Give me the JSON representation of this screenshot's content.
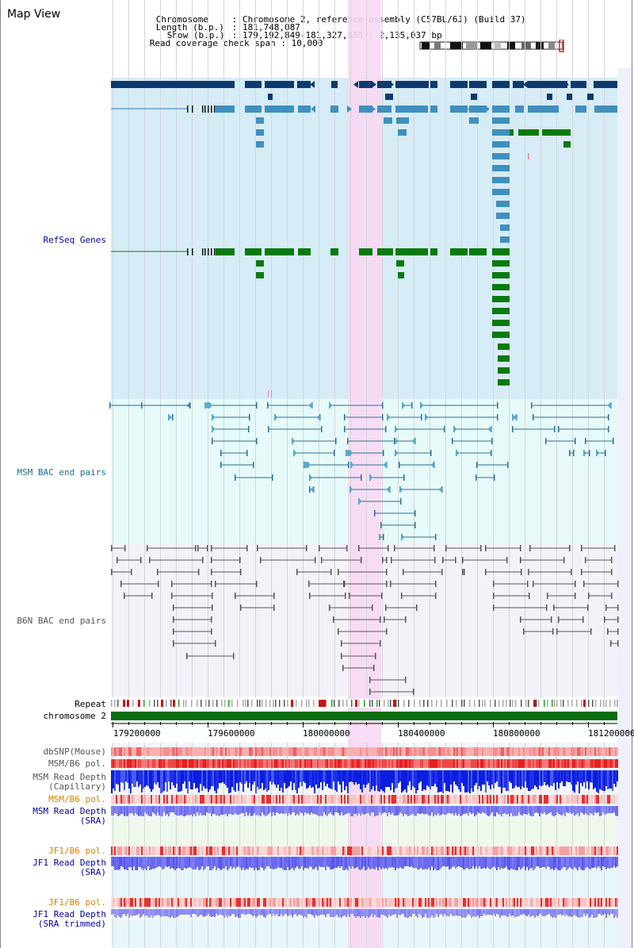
{
  "app": {
    "title": "Map View"
  },
  "info": {
    "chromosome_key": "Chromosome",
    "chromosome_value": "Chromosome 2, reference assembly (C57BL/6J) (Build 37)",
    "length_key": "Length (b.p.)",
    "length_value": "181,748,087",
    "show_key": "Show (b.p.)",
    "show_value": "179,192,849-181,327,885 : 2,135,037 bp",
    "coverage_key": "Read coverage check span",
    "coverage_value": "10,000"
  },
  "tracks": {
    "refseq": "RefSeq Genes",
    "msm_bac": "MSM BAC end pairs",
    "b6n_bac": "B6N BAC end pairs",
    "repeat": "Repeat",
    "chromosome": "chromosome 2",
    "dbsnp": "dbSNP(Mouse)",
    "msm_b6_pol_1": "MSM/B6 pol.",
    "msm_depth_cap_1": "MSM Read Depth",
    "msm_depth_cap_2": "(Capillary)",
    "msm_b6_pol_2": "MSM/B6 pol.",
    "msm_depth_sra_1": "MSM Read Depth",
    "msm_depth_sra_2": "(SRA)",
    "jf1_b6_pol_1": "JF1/B6 pol.",
    "jf1_depth_sra_1": "JF1 Read Depth",
    "jf1_depth_sra_2": "(SRA)",
    "jf1_b6_pol_2": "JF1/B6 pol.",
    "jf1_depth_trim_1": "JF1 Read Depth",
    "jf1_depth_trim_2": "(SRA trimmed)"
  },
  "axis": {
    "ticks": [
      "179200000",
      "179600000",
      "180000000",
      "180400000",
      "180800000",
      "181200000"
    ]
  },
  "colors": {
    "refseq_bg": "#d6ecf6",
    "msm_bg": "#e6fafa",
    "b6n_bg": "#f2f2f8",
    "highlight": "#f8d8f4",
    "gene_dark": "#0c3a6e",
    "gene_mid": "#3f8fbf",
    "gene_green": "#0a7a10",
    "msm_pair": "#2a6f96",
    "b6n_pair": "#555555",
    "label_blue": "#0000aa",
    "label_teal": "#1a6f96",
    "label_orange": "#e08000",
    "depth_dark": "#0a1ee0",
    "depth_light": "#7b7bf2",
    "chrom_green": "#0a6e10"
  }
}
